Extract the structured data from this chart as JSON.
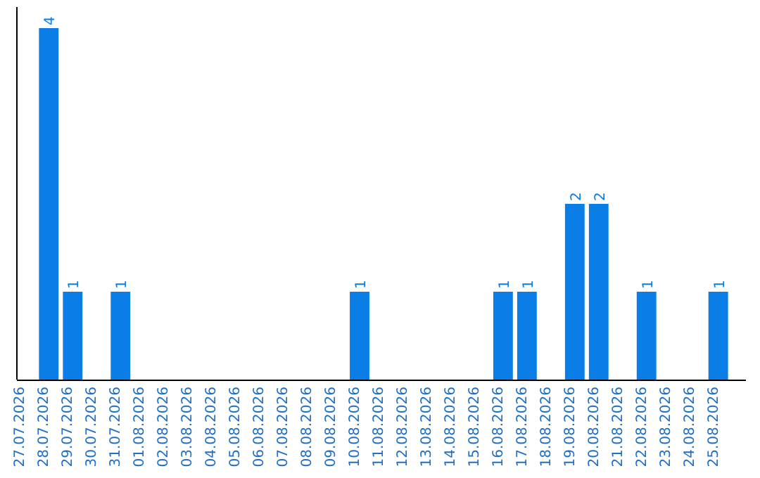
{
  "chart_data": {
    "type": "bar",
    "categories": [
      "27.07.2026",
      "28.07.2026",
      "29.07.2026",
      "30.07.2026",
      "31.07.2026",
      "01.08.2026",
      "02.08.2026",
      "03.08.2026",
      "04.08.2026",
      "05.08.2026",
      "06.08.2026",
      "07.08.2026",
      "08.08.2026",
      "09.08.2026",
      "10.08.2026",
      "11.08.2026",
      "12.08.2026",
      "13.08.2026",
      "14.08.2026",
      "15.08.2026",
      "16.08.2026",
      "17.08.2026",
      "18.08.2026",
      "19.08.2026",
      "20.08.2026",
      "21.08.2026",
      "22.08.2026",
      "23.08.2026",
      "24.08.2026",
      "25.08.2026"
    ],
    "values": [
      0,
      4,
      1,
      0,
      1,
      0,
      0,
      0,
      0,
      0,
      0,
      0,
      0,
      0,
      1,
      0,
      0,
      0,
      0,
      0,
      1,
      1,
      0,
      2,
      2,
      0,
      1,
      0,
      0,
      1
    ],
    "value_labels": [
      null,
      "4",
      "1",
      null,
      "1",
      null,
      null,
      null,
      null,
      null,
      null,
      null,
      null,
      null,
      "1",
      null,
      null,
      null,
      null,
      null,
      "1",
      "1",
      null,
      "2",
      "2",
      null,
      "1",
      null,
      null,
      "1"
    ],
    "color": "#0a7ee6"
  }
}
